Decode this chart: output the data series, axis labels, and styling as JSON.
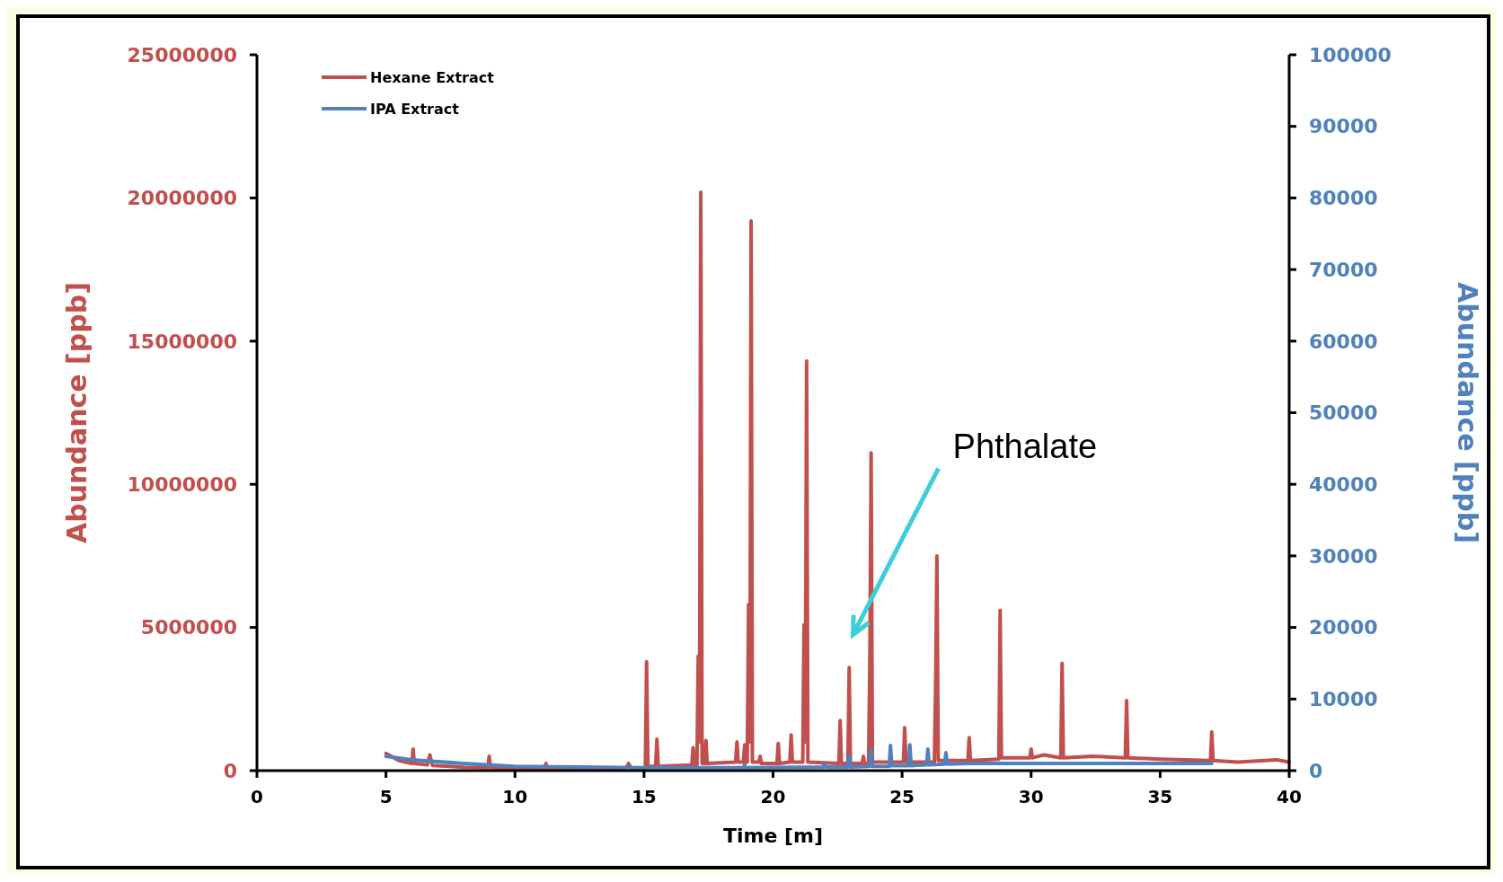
{
  "chart_data": {
    "type": "line",
    "xlabel": "Time [m]",
    "ylabel": "Abundance [ppb]",
    "y2label": "Abundance [ppb]",
    "xlim": [
      0,
      40
    ],
    "xticks": [
      0,
      5,
      10,
      15,
      20,
      25,
      30,
      35,
      40
    ],
    "ylim": [
      0,
      25000000
    ],
    "yticks": [
      0,
      5000000,
      10000000,
      15000000,
      20000000,
      25000000
    ],
    "y2lim": [
      0,
      100000
    ],
    "y2ticks": [
      0,
      10000,
      20000,
      30000,
      40000,
      50000,
      60000,
      70000,
      80000,
      90000,
      100000
    ],
    "legend": "top left",
    "grid": false,
    "marker": "none",
    "line_style": "solid",
    "annotations": [
      "Phthalate"
    ],
    "series": [
      {
        "name": "Hexane Extract",
        "color": "#c0504d",
        "x": [
          5.0,
          5.5,
          6.0,
          6.05,
          6.1,
          6.6,
          6.7,
          6.8,
          8.0,
          8.95,
          9.0,
          9.05,
          11.15,
          11.2,
          11.25,
          13,
          14.3,
          14.4,
          14.5,
          15.05,
          15.1,
          15.15,
          15.45,
          15.5,
          15.55,
          16.85,
          16.9,
          16.95,
          17.05,
          17.1,
          17.15,
          17.2,
          17.25,
          17.35,
          17.4,
          17.45,
          18.55,
          18.6,
          18.65,
          18.85,
          18.9,
          18.95,
          19.0,
          19.05,
          19.1,
          19.15,
          19.2,
          19.45,
          19.5,
          19.55,
          20.15,
          20.2,
          20.25,
          20.65,
          20.7,
          20.75,
          21.15,
          21.2,
          21.25,
          21.3,
          21.35,
          22.55,
          22.6,
          22.65,
          22.9,
          22.95,
          23.0,
          23.45,
          23.5,
          23.55,
          23.7,
          23.75,
          23.8,
          23.85,
          25.05,
          25.1,
          25.15,
          26.25,
          26.3,
          26.35,
          26.4,
          27.55,
          27.6,
          27.65,
          28.75,
          28.8,
          28.85,
          29.95,
          30.0,
          30.05,
          30.5,
          31.15,
          31.2,
          31.25,
          32.4,
          33.65,
          33.7,
          33.75,
          35,
          36.95,
          37.0,
          37.05,
          38,
          39.5,
          40
        ],
        "values": [
          600000,
          350000,
          250000,
          750000,
          250000,
          200000,
          550000,
          180000,
          120000,
          100000,
          500000,
          100000,
          60000,
          250000,
          60000,
          50000,
          80000,
          250000,
          80000,
          100000,
          3800000,
          150000,
          150000,
          1100000,
          150000,
          200000,
          800000,
          200000,
          200000,
          4000000,
          1000000,
          20200000,
          250000,
          250000,
          1050000,
          250000,
          300000,
          1000000,
          300000,
          300000,
          900000,
          300000,
          300000,
          5800000,
          1000000,
          19200000,
          300000,
          300000,
          500000,
          250000,
          250000,
          950000,
          250000,
          300000,
          1250000,
          300000,
          300000,
          5100000,
          1000000,
          14300000,
          300000,
          250000,
          1750000,
          250000,
          250000,
          3600000,
          250000,
          250000,
          500000,
          250000,
          250000,
          3700000,
          11100000,
          300000,
          300000,
          1500000,
          300000,
          300000,
          3000000,
          7500000,
          350000,
          350000,
          1150000,
          350000,
          400000,
          5600000,
          450000,
          450000,
          750000,
          450000,
          550000,
          450000,
          3750000,
          450000,
          500000,
          450000,
          2450000,
          450000,
          400000,
          350000,
          1350000,
          350000,
          300000,
          380000,
          300000
        ]
      },
      {
        "name": "IPA Extract",
        "color": "#4f81bd",
        "axis": "y2",
        "x": [
          5.0,
          6,
          8,
          10,
          15,
          18.85,
          18.9,
          18.95,
          21.95,
          22.0,
          22.05,
          22.9,
          22.95,
          23.0,
          23.75,
          23.8,
          23.85,
          24.5,
          24.55,
          24.6,
          25.25,
          25.3,
          25.35,
          25.95,
          26.0,
          26.05,
          26.65,
          26.7,
          26.75,
          27.5,
          30,
          34,
          37
        ],
        "values": [
          2000,
          1500,
          1000,
          600,
          400,
          400,
          800,
          400,
          500,
          1000,
          500,
          500,
          2000,
          500,
          600,
          2900,
          600,
          600,
          3500,
          700,
          700,
          3600,
          700,
          800,
          3000,
          800,
          900,
          2500,
          900,
          1000,
          1000,
          1000,
          1000
        ]
      }
    ]
  }
}
